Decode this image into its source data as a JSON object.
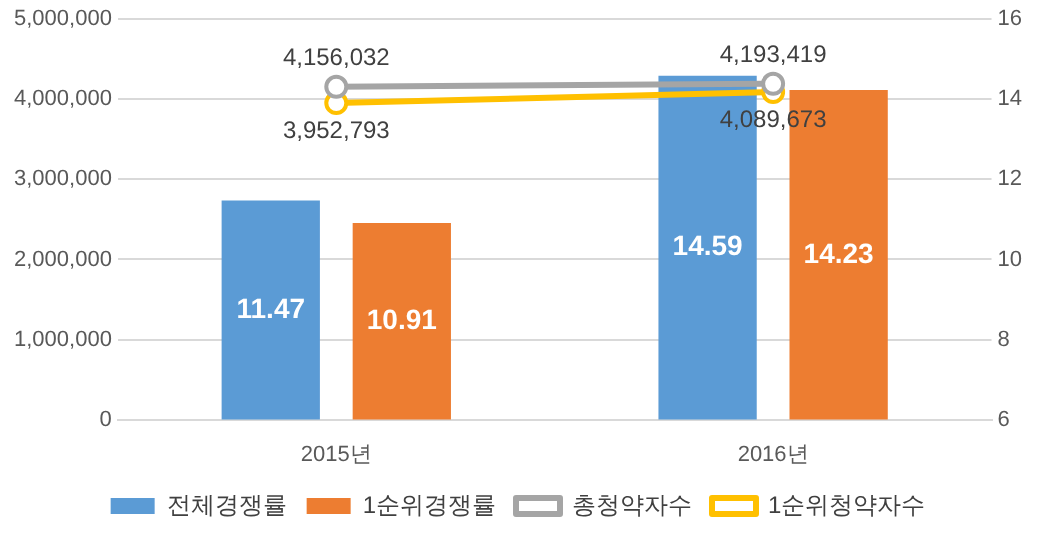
{
  "chart_data": {
    "type": "bar",
    "categories": [
      "2015년",
      "2016년"
    ],
    "series": [
      {
        "name": "전체경쟁률",
        "axis": "y2",
        "color": "#5b9bd5",
        "values": [
          11.47,
          14.59
        ]
      },
      {
        "name": "1순위경쟁률",
        "axis": "y2",
        "color": "#ed7d31",
        "values": [
          10.91,
          14.23
        ]
      },
      {
        "name": "총청약자수",
        "type": "line",
        "color": "#a5a5a5",
        "values": [
          4156032,
          4193419
        ],
        "value_labels": [
          "4,156,032",
          "4,193,419"
        ]
      },
      {
        "name": "1순위청약자수",
        "type": "line",
        "color": "#ffc000",
        "values": [
          3952793,
          4089673
        ],
        "value_labels": [
          "3,952,793",
          "4,089,673"
        ]
      }
    ],
    "ylim": [
      0,
      5000000
    ],
    "yticks": [
      {
        "value": 0,
        "label": "0"
      },
      {
        "value": 1000000,
        "label": "1,000,000"
      },
      {
        "value": 2000000,
        "label": "2,000,000"
      },
      {
        "value": 3000000,
        "label": "3,000,000"
      },
      {
        "value": 4000000,
        "label": "4,000,000"
      },
      {
        "value": 5000000,
        "label": "5,000,000"
      }
    ],
    "y2lim": [
      6,
      16
    ],
    "y2ticks": [
      6,
      8,
      10,
      12,
      14,
      16
    ],
    "grid": "y",
    "legend": "bottom",
    "marker": "circle",
    "data_labels": true
  }
}
